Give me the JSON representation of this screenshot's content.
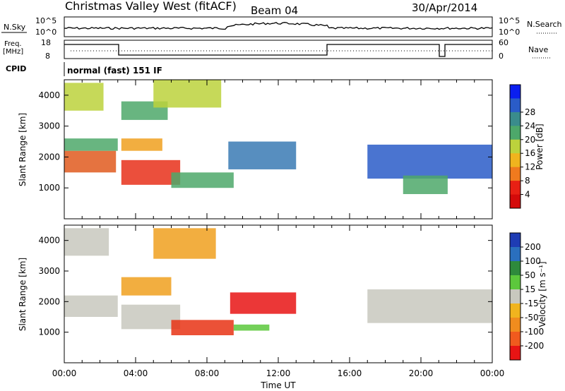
{
  "header": {
    "station": "Christmas Valley West (fitACF)",
    "beam": "Beam 04",
    "date": "30/Apr/2014"
  },
  "noise_panel": {
    "left_label": "N.Sky",
    "left_ticks": [
      "10^5",
      "10^0"
    ],
    "right_ticks": [
      "10^5",
      "10^0"
    ],
    "right_label": "N.Search"
  },
  "freq_panel": {
    "left_label_1": "Freq.",
    "left_label_2": "[MHz]",
    "left_ticks": [
      "18",
      "8"
    ],
    "right_ticks": [
      "60",
      "0"
    ],
    "right_label": "Nave"
  },
  "cpid": {
    "label": "CPID",
    "mode_text": "normal (fast) 151 IF"
  },
  "chart_data": [
    {
      "type": "heatmap",
      "quantity": "Power",
      "ylabel": "Slant Range [km]",
      "ylim": [
        0,
        4500
      ],
      "yticks": [
        "1000",
        "2000",
        "3000",
        "4000"
      ],
      "xlim": [
        0,
        24
      ],
      "colorbar_label": "Power [dB]",
      "colorbar_ticks": [
        "4",
        "8",
        "12",
        "16",
        "20",
        "24",
        "28"
      ],
      "colorbar_colors": [
        "#0a1ef0",
        "#2a5cc8",
        "#3a8c8c",
        "#4da86a",
        "#bcd23c",
        "#f0b41e",
        "#f07a1e",
        "#e82014",
        "#d40a0a"
      ],
      "bands": [
        {
          "t0": 0.0,
          "t1": 2.9,
          "r0": 1500,
          "r1": 2200,
          "color": "#e05a1e"
        },
        {
          "t0": 0.0,
          "t1": 3.0,
          "r0": 2200,
          "r1": 2600,
          "color": "#4da86a"
        },
        {
          "t0": 0.0,
          "t1": 2.2,
          "r0": 3500,
          "r1": 4400,
          "color": "#bcd23c"
        },
        {
          "t0": 3.2,
          "t1": 6.5,
          "r0": 1100,
          "r1": 1900,
          "color": "#e8301a"
        },
        {
          "t0": 3.2,
          "t1": 5.5,
          "r0": 2200,
          "r1": 2600,
          "color": "#f0a01e"
        },
        {
          "t0": 3.2,
          "t1": 5.8,
          "r0": 3200,
          "r1": 3800,
          "color": "#4da86a"
        },
        {
          "t0": 5.0,
          "t1": 8.8,
          "r0": 3600,
          "r1": 4500,
          "color": "#bcd23c"
        },
        {
          "t0": 6.0,
          "t1": 9.5,
          "r0": 1000,
          "r1": 1500,
          "color": "#4da86a"
        },
        {
          "t0": 9.2,
          "t1": 13.0,
          "r0": 1600,
          "r1": 2500,
          "color": "#3a7ab4"
        },
        {
          "t0": 17.0,
          "t1": 24.0,
          "r0": 1300,
          "r1": 2400,
          "color": "#2a5cc8"
        },
        {
          "t0": 19.0,
          "t1": 21.5,
          "r0": 800,
          "r1": 1400,
          "color": "#4da86a"
        }
      ]
    },
    {
      "type": "heatmap",
      "quantity": "Velocity",
      "ylabel": "Slant Range [km]",
      "ylim": [
        0,
        4500
      ],
      "yticks": [
        "1000",
        "2000",
        "3000",
        "4000"
      ],
      "xlim": [
        0,
        24
      ],
      "xticks": [
        "00:00",
        "04:00",
        "08:00",
        "12:00",
        "16:00",
        "20:00",
        "00:00"
      ],
      "xlabel": "Time UT",
      "colorbar_label": "Velocity [m s⁻¹]",
      "colorbar_ticks": [
        "200",
        "100",
        "50",
        "15",
        "-15",
        "-50",
        "-100",
        "-200"
      ],
      "colorbar_colors": [
        "#1e3cb4",
        "#2a6fbe",
        "#2e8a3c",
        "#5cc83c",
        "#c8c8be",
        "#f0b41e",
        "#f08c1e",
        "#f05a1e",
        "#e81414"
      ],
      "bands": [
        {
          "t0": 0.0,
          "t1": 3.0,
          "r0": 1500,
          "r1": 2200,
          "color": "#c8c8be"
        },
        {
          "t0": 0.0,
          "t1": 2.5,
          "r0": 3500,
          "r1": 4400,
          "color": "#c8c8be"
        },
        {
          "t0": 3.2,
          "t1": 6.5,
          "r0": 1100,
          "r1": 1900,
          "color": "#c8c8be"
        },
        {
          "t0": 3.2,
          "t1": 6.0,
          "r0": 2200,
          "r1": 2800,
          "color": "#f0a01e"
        },
        {
          "t0": 5.0,
          "t1": 8.5,
          "r0": 3400,
          "r1": 4400,
          "color": "#f0a01e"
        },
        {
          "t0": 6.0,
          "t1": 9.5,
          "r0": 900,
          "r1": 1400,
          "color": "#e83214"
        },
        {
          "t0": 9.3,
          "t1": 13.0,
          "r0": 1600,
          "r1": 2300,
          "color": "#e81414"
        },
        {
          "t0": 17.0,
          "t1": 24.0,
          "r0": 1300,
          "r1": 2400,
          "color": "#c8c8be"
        },
        {
          "t0": 9.5,
          "t1": 11.5,
          "r0": 1050,
          "r1": 1250,
          "color": "#5cc83c"
        }
      ]
    }
  ]
}
